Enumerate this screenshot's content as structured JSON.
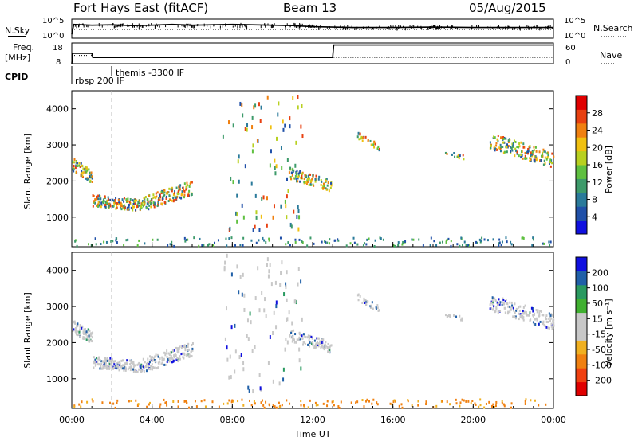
{
  "header": {
    "station": "Fort Hays East (fitACF)",
    "beam": "Beam 13",
    "date": "05/Aug/2015"
  },
  "top_panels": {
    "nsky_label": "N.Sky",
    "nsearch_label": "N.Search",
    "freq_label_1": "Freq.",
    "freq_label_2": "[MHz]",
    "nave_label": "Nave",
    "cpid_label": "CPID",
    "left_ticks_1": [
      "10^5",
      "10^0"
    ],
    "right_ticks_1": [
      "10^5",
      "10^0"
    ],
    "left_ticks_2": [
      "18",
      "8"
    ],
    "right_ticks_2": [
      "60",
      "0"
    ],
    "cpid_labels": [
      "rbsp 200 IF",
      "themis -3300 IF"
    ]
  },
  "colors": {
    "power": [
      "#1010e0",
      "#2050a8",
      "#2a7a9a",
      "#3d9a6a",
      "#5fc040",
      "#b8d020",
      "#f0c010",
      "#f08010",
      "#e84010",
      "#e00000"
    ],
    "velocity": [
      "#e00000",
      "#f04010",
      "#f08010",
      "#f0b020",
      "#c8c8c8",
      "#c8c8c8",
      "#40b030",
      "#2a9a60",
      "#2060a8",
      "#1010e0"
    ]
  },
  "chart_data": [
    {
      "type": "line",
      "title": "N.Sky / N.Search",
      "x_range": [
        "00:00",
        "24:00"
      ],
      "series": [
        {
          "name": "N.Sky",
          "x": [
            0,
            0.1,
            1,
            2,
            3,
            4,
            5,
            6,
            7,
            8,
            9,
            10,
            11,
            12,
            13,
            14,
            16,
            18,
            20,
            22,
            24
          ],
          "values": [
            1,
            3.6,
            3.4,
            3.5,
            3.3,
            3.4,
            3.6,
            3.4,
            3.5,
            3.6,
            3.5,
            3.4,
            3.3,
            3.0,
            2.9,
            2.8,
            2.8,
            2.9,
            2.8,
            2.8,
            2.8
          ]
        },
        {
          "name": "N.Search",
          "x": [
            0,
            2,
            4,
            6,
            8,
            10,
            12,
            14,
            16,
            18,
            20,
            22,
            24
          ],
          "values": [
            2.3,
            2.3,
            2.3,
            2.3,
            2.3,
            2.3,
            2.3,
            2.3,
            2.3,
            2.3,
            2.3,
            2.3,
            2.3
          ]
        }
      ],
      "ylim": [
        0,
        5
      ]
    },
    {
      "type": "line",
      "title": "Freq. / Nave",
      "x_range": [
        "00:00",
        "24:00"
      ],
      "series": [
        {
          "name": "Freq.",
          "x": [
            0,
            0.05,
            1,
            1.05,
            13,
            13.05,
            24
          ],
          "values": [
            8,
            13,
            13,
            11,
            11,
            17,
            17
          ]
        },
        {
          "name": "Nave",
          "x": [
            0,
            1,
            1.05,
            24
          ],
          "values": [
            24,
            24,
            18,
            18
          ]
        }
      ],
      "ylim_left": [
        8,
        18
      ],
      "ylim_right": [
        0,
        60
      ]
    },
    {
      "type": "heatmap",
      "title": "Power",
      "xlabel": "",
      "ylabel": "Slant Range [km]",
      "xlim": [
        0,
        24
      ],
      "ylim": [
        180,
        4500
      ],
      "yticks": [
        1000,
        2000,
        3000,
        4000
      ],
      "colorbar_label": "Power [dB]",
      "colorbar_ticks": [
        "4",
        "8",
        "12",
        "16",
        "20",
        "24",
        "28"
      ],
      "clim": [
        0,
        30
      ]
    },
    {
      "type": "heatmap",
      "title": "Velocity",
      "xlabel": "Time UT",
      "ylabel": "Slant Range [km]",
      "xlim": [
        0,
        24
      ],
      "ylim": [
        180,
        4500
      ],
      "xticks": [
        "00:00",
        "04:00",
        "08:00",
        "12:00",
        "16:00",
        "20:00",
        "00:00"
      ],
      "yticks": [
        1000,
        2000,
        3000,
        4000
      ],
      "colorbar_label": "Velocity [m s⁻¹]",
      "colorbar_ticks": [
        "-200",
        "-100",
        "-50",
        "-15",
        "15",
        "50",
        "100",
        "200"
      ],
      "clim": [
        -250,
        250
      ]
    }
  ]
}
